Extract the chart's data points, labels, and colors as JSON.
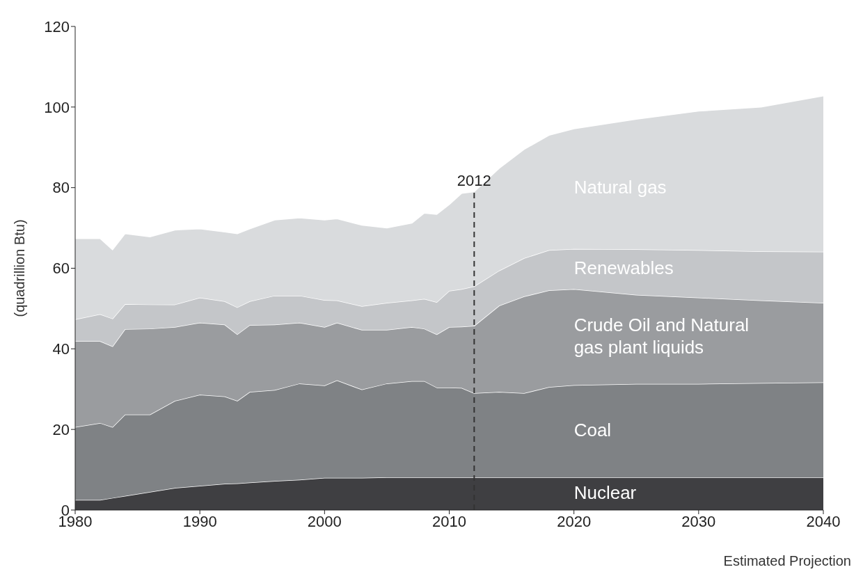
{
  "chart_data": {
    "type": "area",
    "stacked": true,
    "ylabel": "(quadrillion Btu)",
    "xlabel": "Estimated Projection",
    "x": [
      1980,
      1982,
      1983,
      1984,
      1986,
      1988,
      1990,
      1992,
      1993,
      1994,
      1996,
      1998,
      2000,
      2001,
      2003,
      2005,
      2007,
      2008,
      2009,
      2010,
      2011,
      2012,
      2014,
      2016,
      2018,
      2020,
      2025,
      2030,
      2035,
      2040
    ],
    "series": [
      {
        "name": "Nuclear",
        "color": "#3f3f42",
        "values": [
          2.5,
          2.5,
          3.0,
          3.5,
          4.5,
          5.5,
          6.0,
          6.5,
          6.6,
          6.8,
          7.2,
          7.5,
          8.0,
          8.0,
          8.0,
          8.1,
          8.1,
          8.1,
          8.1,
          8.1,
          8.1,
          8.1,
          8.1,
          8.1,
          8.1,
          8.1,
          8.1,
          8.1,
          8.1,
          8.1
        ]
      },
      {
        "name": "Coal",
        "color": "#7f8285",
        "values": [
          18.1,
          19.1,
          17.6,
          20.2,
          19.2,
          21.6,
          22.6,
          21.7,
          20.5,
          22.5,
          22.6,
          23.9,
          22.9,
          24.2,
          21.9,
          23.3,
          23.9,
          23.9,
          22.3,
          22.3,
          22.2,
          20.9,
          21.2,
          20.9,
          22.4,
          22.9,
          23.2,
          23.2,
          23.4,
          23.6
        ]
      },
      {
        "name": "Crude Oil and Natural gas plant liquids",
        "color": "#9a9c9f",
        "values": [
          21.3,
          20.3,
          20.0,
          21.2,
          21.3,
          18.3,
          17.9,
          17.8,
          16.5,
          16.6,
          16.2,
          15.1,
          14.5,
          14.3,
          14.8,
          13.3,
          13.4,
          13.0,
          13.2,
          15.0,
          15.2,
          16.7,
          21.4,
          24.0,
          24.0,
          23.8,
          22.1,
          21.4,
          20.5,
          19.7
        ]
      },
      {
        "name": "Renewables",
        "color": "#c4c6c9",
        "values": [
          5.4,
          6.7,
          6.9,
          6.2,
          6.0,
          5.6,
          6.2,
          5.8,
          6.7,
          5.9,
          7.2,
          6.7,
          6.7,
          5.5,
          5.9,
          6.7,
          6.6,
          7.4,
          8.0,
          9.0,
          9.3,
          9.8,
          8.7,
          9.5,
          10.0,
          10.0,
          11.3,
          11.8,
          12.2,
          12.7
        ]
      },
      {
        "name": "Natural gas",
        "color": "#d9dbdd",
        "values": [
          20.1,
          18.8,
          17.1,
          17.5,
          16.8,
          18.5,
          17.1,
          17.2,
          18.3,
          18.0,
          18.8,
          19.3,
          19.9,
          20.3,
          20.1,
          18.6,
          19.2,
          21.3,
          21.8,
          21.4,
          23.8,
          23.5,
          25.4,
          27.0,
          28.5,
          29.8,
          32.3,
          34.5,
          35.8,
          38.7
        ]
      }
    ],
    "xlim": [
      1980,
      2040
    ],
    "xticks": [
      1980,
      1990,
      2000,
      2010,
      2020,
      2030,
      2040
    ],
    "ylim": [
      0,
      120
    ],
    "yticks": [
      0,
      20,
      40,
      60,
      80,
      100,
      120
    ],
    "grid": false,
    "legend": false,
    "ref_lines": [
      {
        "axis": "x",
        "value": 2012,
        "label": "2012",
        "color": "#333333",
        "line_style": "dashed"
      }
    ]
  }
}
